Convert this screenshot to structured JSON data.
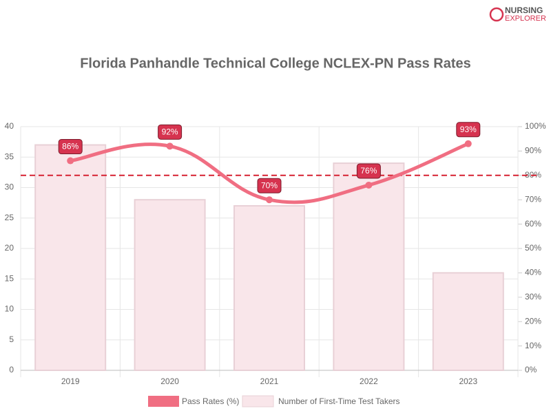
{
  "chart_data": {
    "type": "bar",
    "title": "Florida Panhandle Technical College NCLEX-PN Pass Rates",
    "logo": [
      "NURSING",
      "EXPLORER"
    ],
    "categories": [
      "2019",
      "2020",
      "2021",
      "2022",
      "2023"
    ],
    "series": [
      {
        "name": "Pass Rates (%)",
        "type": "line",
        "axis": "y2",
        "color": "#f06e82",
        "values": [
          86,
          92,
          70,
          76,
          93
        ],
        "value_labels": [
          "86%",
          "92%",
          "70%",
          "76%",
          "93%"
        ]
      },
      {
        "name": "Number of First-Time Test Takers",
        "type": "bar",
        "color": "#f9e6ea",
        "values": [
          37,
          28,
          27,
          34,
          16
        ]
      }
    ],
    "threshold": 80,
    "ylim": [
      0,
      40
    ],
    "yticks": [
      0,
      5,
      10,
      15,
      20,
      25,
      30,
      35,
      40
    ],
    "y2lim": [
      0,
      100
    ],
    "y2ticks": [
      {
        "value": 0,
        "label": "0%"
      },
      {
        "value": 10,
        "label": "10%"
      },
      {
        "value": 20,
        "label": "20%"
      },
      {
        "value": 30,
        "label": "30%"
      },
      {
        "value": 40,
        "label": "40%"
      },
      {
        "value": 50,
        "label": "50%"
      },
      {
        "value": 60,
        "label": "60%"
      },
      {
        "value": 70,
        "label": "70%"
      },
      {
        "value": 80,
        "label": "80%"
      },
      {
        "value": 90,
        "label": "90%"
      },
      {
        "value": 100,
        "label": "100%"
      }
    ],
    "grid": true
  }
}
